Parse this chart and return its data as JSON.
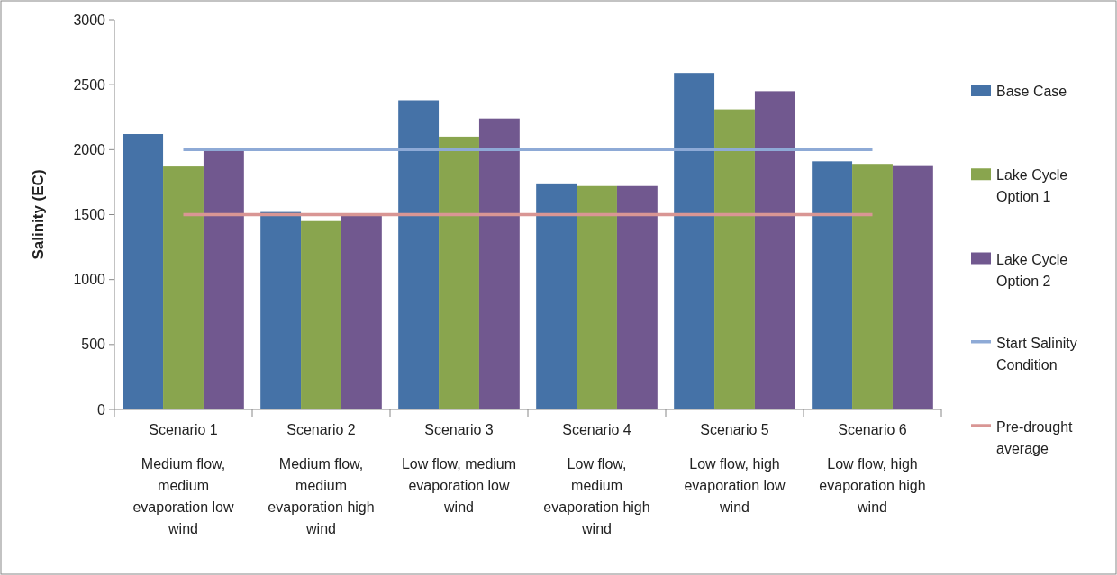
{
  "chart_data": {
    "type": "bar",
    "ylabel": "Salinity (EC)",
    "categories": [
      "Scenario 1\n\nMedium flow,\nmedium\nevaporation  low\nwind",
      "Scenario 2\n\nMedium flow,\nmedium\nevaporation  high\nwind",
      "Scenario 3\n\nLow flow, medium\nevaporation  low\nwind",
      "Scenario 4\n\nLow flow,\nmedium\nevaporation  high\nwind",
      "Scenario 5\n\nLow flow, high\nevaporation  low\nwind",
      "Scenario 6\n\nLow flow, high\nevaporation  high\nwind"
    ],
    "series": [
      {
        "name": "Base Case",
        "color": "#4572a7",
        "values": [
          2120,
          1520,
          2380,
          1740,
          2590,
          1910
        ]
      },
      {
        "name": "Lake Cycle Option 1",
        "color": "#89a54e",
        "values": [
          1870,
          1450,
          2100,
          1720,
          2310,
          1890
        ]
      },
      {
        "name": "Lake Cycle Option 2",
        "color": "#71588f",
        "values": [
          2000,
          1490,
          2240,
          1720,
          2450,
          1880
        ]
      },
      {
        "name": "Start Salinity Condition",
        "type": "line",
        "color": "#8eaad6",
        "values": [
          2000,
          2000,
          2000,
          2000,
          2000,
          2000
        ]
      },
      {
        "name": "Pre-drought average",
        "type": "line",
        "color": "#d99694",
        "values": [
          1500,
          1500,
          1500,
          1500,
          1500,
          1500
        ]
      }
    ],
    "ylim": [
      0,
      3000
    ],
    "yticks": [
      0,
      500,
      1000,
      1500,
      2000,
      2500,
      3000
    ],
    "grid": false,
    "legend": "right"
  }
}
